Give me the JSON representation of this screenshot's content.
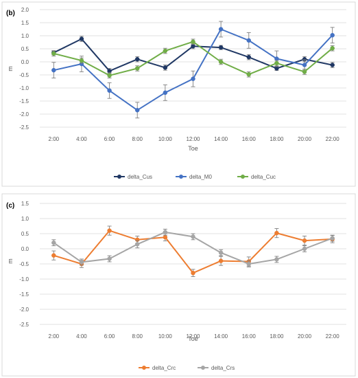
{
  "chart_data": [
    {
      "type": "line",
      "panel_label": "(b)",
      "xlabel": "Toe",
      "ylabel": "m",
      "ylim": [
        -2.5,
        2.0
      ],
      "y_ticks": [
        "2.0",
        "1.5",
        "1.0",
        "0.5",
        "0.0",
        "-0.5",
        "-1.0",
        "-1.5",
        "-2.0",
        "-2.5"
      ],
      "y_tick_values": [
        2.0,
        1.5,
        1.0,
        0.5,
        0.0,
        -0.5,
        -1.0,
        -1.5,
        -2.0,
        -2.5
      ],
      "categories": [
        "2:00",
        "4:00",
        "6:00",
        "8:00",
        "10:00",
        "12:00",
        "14:00",
        "16:00",
        "18:00",
        "20:00",
        "22:00"
      ],
      "grid": true,
      "legend_position": "bottom",
      "series": [
        {
          "name": "delta_Cus",
          "color": "#203864",
          "values": [
            0.35,
            0.88,
            -0.35,
            0.1,
            -0.22,
            0.6,
            0.55,
            0.18,
            -0.25,
            0.1,
            -0.12
          ],
          "errors": [
            0.08,
            0.1,
            0.1,
            0.1,
            0.1,
            0.1,
            0.08,
            0.1,
            0.08,
            0.1,
            0.1
          ]
        },
        {
          "name": "delta_M0",
          "color": "#4472c4",
          "values": [
            -0.32,
            -0.08,
            -1.1,
            -1.85,
            -1.18,
            -0.65,
            1.25,
            0.82,
            0.12,
            -0.12,
            1.02
          ],
          "errors": [
            0.3,
            0.3,
            0.3,
            0.3,
            0.3,
            0.3,
            0.3,
            0.3,
            0.3,
            0.2,
            0.3
          ]
        },
        {
          "name": "delta_Cuc",
          "color": "#70ad47",
          "values": [
            0.32,
            0.05,
            -0.52,
            -0.25,
            0.42,
            0.77,
            0.0,
            -0.48,
            -0.05,
            -0.38,
            0.52
          ],
          "errors": [
            0.1,
            0.1,
            0.1,
            0.1,
            0.1,
            0.1,
            0.1,
            0.1,
            0.1,
            0.1,
            0.1
          ]
        }
      ]
    },
    {
      "type": "line",
      "panel_label": "(c)",
      "xlabel": "Toe",
      "ylabel": "m",
      "ylim": [
        -2.5,
        1.5
      ],
      "y_ticks": [
        "1.5",
        "1.0",
        "0.5",
        "0.0",
        "-0.5",
        "-1.0",
        "-1.5",
        "-2.0",
        "-2.5"
      ],
      "y_tick_values": [
        1.5,
        1.0,
        0.5,
        0.0,
        -0.5,
        -1.0,
        -1.5,
        -2.0,
        -2.5
      ],
      "categories": [
        "2:00",
        "4:00",
        "6:00",
        "8:00",
        "10:00",
        "12:00",
        "14:00",
        "16:00",
        "18:00",
        "20:00",
        "22:00"
      ],
      "grid": true,
      "legend_position": "bottom",
      "series": [
        {
          "name": "delta_Crc",
          "color": "#ed7d31",
          "values": [
            -0.22,
            -0.5,
            0.6,
            0.3,
            0.38,
            -0.8,
            -0.4,
            -0.42,
            0.52,
            0.27,
            0.32
          ],
          "errors": [
            0.15,
            0.12,
            0.15,
            0.12,
            0.12,
            0.12,
            0.15,
            0.15,
            0.15,
            0.15,
            0.12
          ]
        },
        {
          "name": "delta_Crs",
          "color": "#a5a5a5",
          "values": [
            0.2,
            -0.44,
            -0.33,
            0.15,
            0.55,
            0.4,
            -0.13,
            -0.5,
            -0.35,
            0.0,
            0.35
          ],
          "errors": [
            0.1,
            0.1,
            0.1,
            0.12,
            0.1,
            0.1,
            0.1,
            0.1,
            0.1,
            0.1,
            0.1
          ]
        }
      ]
    }
  ]
}
